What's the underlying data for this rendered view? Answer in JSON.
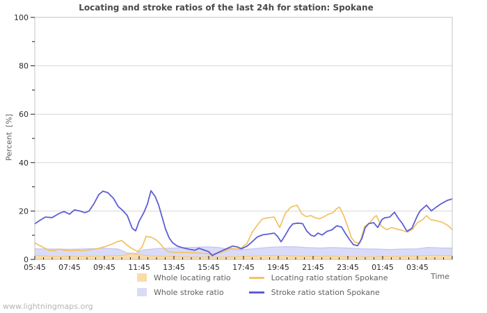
{
  "page": {
    "watermark": "www.lightningmaps.org"
  },
  "chart_data": {
    "type": "line",
    "title": "Locating and stroke ratios of the last 24h for station: Spokane",
    "xlabel": "Time",
    "ylabel": "Percent  [%]",
    "ylim": [
      0,
      100
    ],
    "y_ticks": [
      0,
      20,
      40,
      60,
      80,
      100
    ],
    "y_minor_ticks": [
      10,
      30,
      50,
      70,
      90
    ],
    "grid_y": [
      20,
      40,
      60,
      80
    ],
    "x_range_hours": [
      0,
      24
    ],
    "x_minor_step_hours": 0.5,
    "x_tick_hours": [
      0,
      2,
      4,
      6,
      8,
      10,
      12,
      14,
      16,
      18,
      20,
      22
    ],
    "x_tick_labels": [
      "05:45",
      "07:45",
      "09:45",
      "11:45",
      "13:45",
      "15:45",
      "17:45",
      "19:45",
      "21:45",
      "23:45",
      "01:45",
      "03:45"
    ],
    "legend_position": "bottom",
    "grid_color": "#d6d6d6",
    "frame_color": "#c0c0c0",
    "tick_color": "#1a1a1a",
    "draw_order": [
      1,
      0,
      2,
      3
    ],
    "series": [
      {
        "name": "Whole locating ratio",
        "type": "area",
        "fill": "#f8dcaa",
        "stroke": "#edcb8b",
        "points": [
          [
            0,
            1.6
          ],
          [
            1,
            1.3
          ],
          [
            2,
            1.2
          ],
          [
            3,
            1.3
          ],
          [
            4,
            1.4
          ],
          [
            5,
            1.6
          ],
          [
            5.5,
            2.3
          ],
          [
            6,
            2.0
          ],
          [
            6.5,
            1.5
          ],
          [
            7.5,
            1.3
          ],
          [
            9,
            1.1
          ],
          [
            10.5,
            1.0
          ],
          [
            12,
            1.3
          ],
          [
            13,
            1.5
          ],
          [
            14,
            1.6
          ],
          [
            15,
            1.4
          ],
          [
            16,
            1.3
          ],
          [
            17,
            1.4
          ],
          [
            18,
            1.2
          ],
          [
            19,
            1.1
          ],
          [
            20,
            1.2
          ],
          [
            21,
            1.3
          ],
          [
            22,
            1.5
          ],
          [
            23,
            1.6
          ],
          [
            24,
            1.6
          ]
        ]
      },
      {
        "name": "Whole stroke ratio",
        "type": "area",
        "fill": "#d9dbf8",
        "stroke": "#c2c6f0",
        "points": [
          [
            0,
            4.4
          ],
          [
            1,
            4.3
          ],
          [
            2,
            4.2
          ],
          [
            3,
            4.4
          ],
          [
            4,
            4.6
          ],
          [
            4.8,
            4.3
          ],
          [
            5.3,
            2.7
          ],
          [
            5.8,
            2.5
          ],
          [
            6.2,
            3.9
          ],
          [
            7,
            4.5
          ],
          [
            8,
            4.7
          ],
          [
            9,
            5.0
          ],
          [
            10,
            5.2
          ],
          [
            10.6,
            4.9
          ],
          [
            11,
            4.4
          ],
          [
            11.6,
            3.9
          ],
          [
            12.4,
            4.3
          ],
          [
            13,
            4.7
          ],
          [
            13.6,
            5.1
          ],
          [
            14.4,
            5.3
          ],
          [
            15,
            5.2
          ],
          [
            15.6,
            4.9
          ],
          [
            16.4,
            4.7
          ],
          [
            17,
            4.9
          ],
          [
            18,
            4.7
          ],
          [
            18.8,
            4.4
          ],
          [
            19.6,
            4.3
          ],
          [
            20.4,
            4.1
          ],
          [
            21.2,
            4.3
          ],
          [
            22,
            4.4
          ],
          [
            22.6,
            5.0
          ],
          [
            23.4,
            4.7
          ],
          [
            24,
            4.7
          ]
        ]
      },
      {
        "name": "Locating ratio station Spokane",
        "type": "line",
        "stroke": "#f1c468",
        "points": [
          [
            0,
            6.9
          ],
          [
            0.2,
            6.0
          ],
          [
            0.48,
            5.0
          ],
          [
            0.8,
            3.8
          ],
          [
            1.12,
            3.6
          ],
          [
            1.36,
            4.3
          ],
          [
            1.68,
            3.8
          ],
          [
            2.0,
            3.6
          ],
          [
            2.4,
            3.8
          ],
          [
            2.8,
            3.6
          ],
          [
            3.2,
            4.0
          ],
          [
            3.68,
            4.6
          ],
          [
            4.08,
            5.4
          ],
          [
            4.4,
            6.2
          ],
          [
            4.72,
            7.3
          ],
          [
            5.0,
            7.8
          ],
          [
            5.24,
            6.3
          ],
          [
            5.48,
            5.0
          ],
          [
            5.72,
            4.0
          ],
          [
            5.92,
            3.3
          ],
          [
            6.16,
            5.0
          ],
          [
            6.4,
            9.5
          ],
          [
            6.68,
            9.2
          ],
          [
            6.96,
            8.2
          ],
          [
            7.2,
            6.6
          ],
          [
            7.44,
            4.4
          ],
          [
            7.68,
            3.2
          ],
          [
            8.08,
            2.9
          ],
          [
            8.6,
            2.9
          ],
          [
            9.12,
            2.8
          ],
          [
            9.6,
            2.6
          ],
          [
            10.0,
            2.3
          ],
          [
            10.48,
            2.4
          ],
          [
            10.88,
            3.3
          ],
          [
            11.28,
            4.6
          ],
          [
            11.8,
            4.3
          ],
          [
            12.2,
            6.6
          ],
          [
            12.52,
            11.5
          ],
          [
            12.84,
            14.6
          ],
          [
            13.08,
            16.7
          ],
          [
            13.4,
            17.2
          ],
          [
            13.76,
            17.5
          ],
          [
            14.08,
            13.2
          ],
          [
            14.4,
            19.0
          ],
          [
            14.72,
            21.6
          ],
          [
            15.08,
            22.4
          ],
          [
            15.36,
            18.8
          ],
          [
            15.6,
            17.7
          ],
          [
            15.88,
            18.1
          ],
          [
            16.12,
            17.2
          ],
          [
            16.36,
            16.8
          ],
          [
            16.64,
            17.7
          ],
          [
            16.88,
            18.7
          ],
          [
            17.12,
            19.2
          ],
          [
            17.36,
            21.0
          ],
          [
            17.52,
            21.6
          ],
          [
            17.76,
            18.1
          ],
          [
            18.0,
            13.5
          ],
          [
            18.2,
            9.0
          ],
          [
            18.4,
            7.2
          ],
          [
            18.68,
            6.6
          ],
          [
            18.96,
            13.5
          ],
          [
            19.24,
            15.0
          ],
          [
            19.52,
            17.5
          ],
          [
            19.64,
            18.1
          ],
          [
            19.92,
            13.8
          ],
          [
            20.24,
            12.3
          ],
          [
            20.52,
            13.2
          ],
          [
            20.84,
            12.5
          ],
          [
            21.12,
            12.0
          ],
          [
            21.44,
            11.3
          ],
          [
            21.72,
            12.5
          ],
          [
            22.0,
            15.2
          ],
          [
            22.28,
            16.3
          ],
          [
            22.52,
            18.1
          ],
          [
            22.76,
            16.4
          ],
          [
            23.08,
            16.0
          ],
          [
            23.4,
            15.4
          ],
          [
            23.72,
            14.2
          ],
          [
            24.0,
            12.4
          ]
        ]
      },
      {
        "name": "Stroke ratio station Spokane",
        "type": "line",
        "stroke": "#5d5dd5",
        "points": [
          [
            0,
            14.7
          ],
          [
            0.28,
            16.1
          ],
          [
            0.6,
            17.5
          ],
          [
            1.0,
            17.3
          ],
          [
            1.4,
            19.0
          ],
          [
            1.68,
            19.8
          ],
          [
            2.0,
            18.7
          ],
          [
            2.28,
            20.5
          ],
          [
            2.6,
            20.0
          ],
          [
            2.88,
            19.3
          ],
          [
            3.12,
            20.0
          ],
          [
            3.4,
            23.0
          ],
          [
            3.68,
            26.8
          ],
          [
            3.92,
            28.2
          ],
          [
            4.2,
            27.6
          ],
          [
            4.52,
            25.3
          ],
          [
            4.8,
            21.8
          ],
          [
            5.08,
            20.1
          ],
          [
            5.32,
            18.1
          ],
          [
            5.6,
            12.9
          ],
          [
            5.8,
            11.8
          ],
          [
            6.0,
            15.8
          ],
          [
            6.28,
            19.5
          ],
          [
            6.48,
            23.0
          ],
          [
            6.68,
            28.4
          ],
          [
            6.92,
            26.0
          ],
          [
            7.12,
            22.5
          ],
          [
            7.32,
            17.5
          ],
          [
            7.52,
            12.5
          ],
          [
            7.72,
            9.0
          ],
          [
            7.92,
            6.9
          ],
          [
            8.2,
            5.5
          ],
          [
            8.52,
            4.8
          ],
          [
            8.88,
            4.2
          ],
          [
            9.2,
            3.8
          ],
          [
            9.44,
            4.6
          ],
          [
            9.72,
            3.9
          ],
          [
            10.0,
            3.2
          ],
          [
            10.2,
            1.6
          ],
          [
            10.44,
            2.5
          ],
          [
            10.8,
            3.7
          ],
          [
            11.08,
            4.6
          ],
          [
            11.36,
            5.5
          ],
          [
            11.64,
            5.2
          ],
          [
            11.88,
            4.4
          ],
          [
            12.2,
            5.5
          ],
          [
            12.48,
            7.2
          ],
          [
            12.8,
            9.3
          ],
          [
            13.12,
            10.2
          ],
          [
            13.44,
            10.5
          ],
          [
            13.76,
            10.9
          ],
          [
            13.96,
            9.5
          ],
          [
            14.16,
            7.3
          ],
          [
            14.4,
            10.0
          ],
          [
            14.64,
            13.0
          ],
          [
            14.84,
            14.7
          ],
          [
            15.12,
            15.0
          ],
          [
            15.4,
            14.8
          ],
          [
            15.64,
            11.7
          ],
          [
            15.88,
            10.0
          ],
          [
            16.08,
            9.6
          ],
          [
            16.28,
            10.9
          ],
          [
            16.52,
            10.1
          ],
          [
            16.8,
            11.6
          ],
          [
            17.08,
            12.2
          ],
          [
            17.36,
            13.9
          ],
          [
            17.64,
            13.4
          ],
          [
            17.88,
            10.5
          ],
          [
            18.12,
            8.0
          ],
          [
            18.32,
            6.1
          ],
          [
            18.56,
            5.7
          ],
          [
            18.8,
            8.5
          ],
          [
            19.0,
            13.2
          ],
          [
            19.2,
            14.8
          ],
          [
            19.48,
            15.2
          ],
          [
            19.72,
            13.2
          ],
          [
            19.96,
            16.5
          ],
          [
            20.12,
            17.2
          ],
          [
            20.4,
            17.5
          ],
          [
            20.68,
            19.5
          ],
          [
            20.92,
            16.8
          ],
          [
            21.12,
            15.0
          ],
          [
            21.4,
            11.6
          ],
          [
            21.68,
            12.9
          ],
          [
            22.0,
            18.1
          ],
          [
            22.16,
            20.1
          ],
          [
            22.52,
            22.4
          ],
          [
            22.8,
            20.1
          ],
          [
            23.08,
            21.6
          ],
          [
            23.36,
            23.0
          ],
          [
            23.72,
            24.4
          ],
          [
            24.0,
            25.0
          ]
        ]
      }
    ]
  }
}
